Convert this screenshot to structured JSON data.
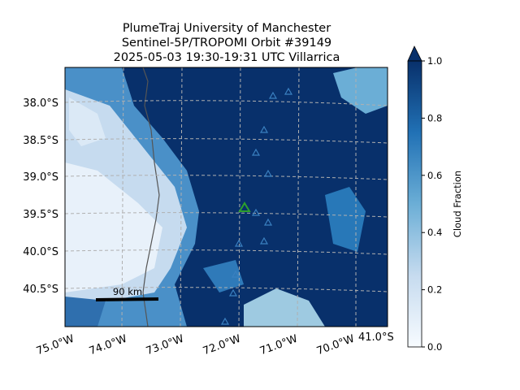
{
  "title_lines": [
    "PlumeTraj    University of Manchester",
    "Sentinel-5P/TROPOMI Orbit #39149",
    "2025-05-03    19:30-19:31 UTC    Villarrica"
  ],
  "lat_labels": [
    "38.0°S",
    "38.5°S",
    "39.0°S",
    "39.5°S",
    "40.0°S",
    "40.5°S",
    "41.0°S"
  ],
  "lon_labels": [
    "75.0°W",
    "74.0°W",
    "73.0°W",
    "72.0°W",
    "71.0°W",
    "70.0°W"
  ],
  "scale_label": "90 km",
  "colorbar": {
    "label": "Cloud Fraction",
    "lim": [
      0,
      1
    ],
    "ticks": [
      {
        "value": 0,
        "label": "0.0"
      },
      0.2,
      0.4,
      0.6,
      0.8,
      {
        "value": 1,
        "label": "1.0"
      }
    ]
  }
}
